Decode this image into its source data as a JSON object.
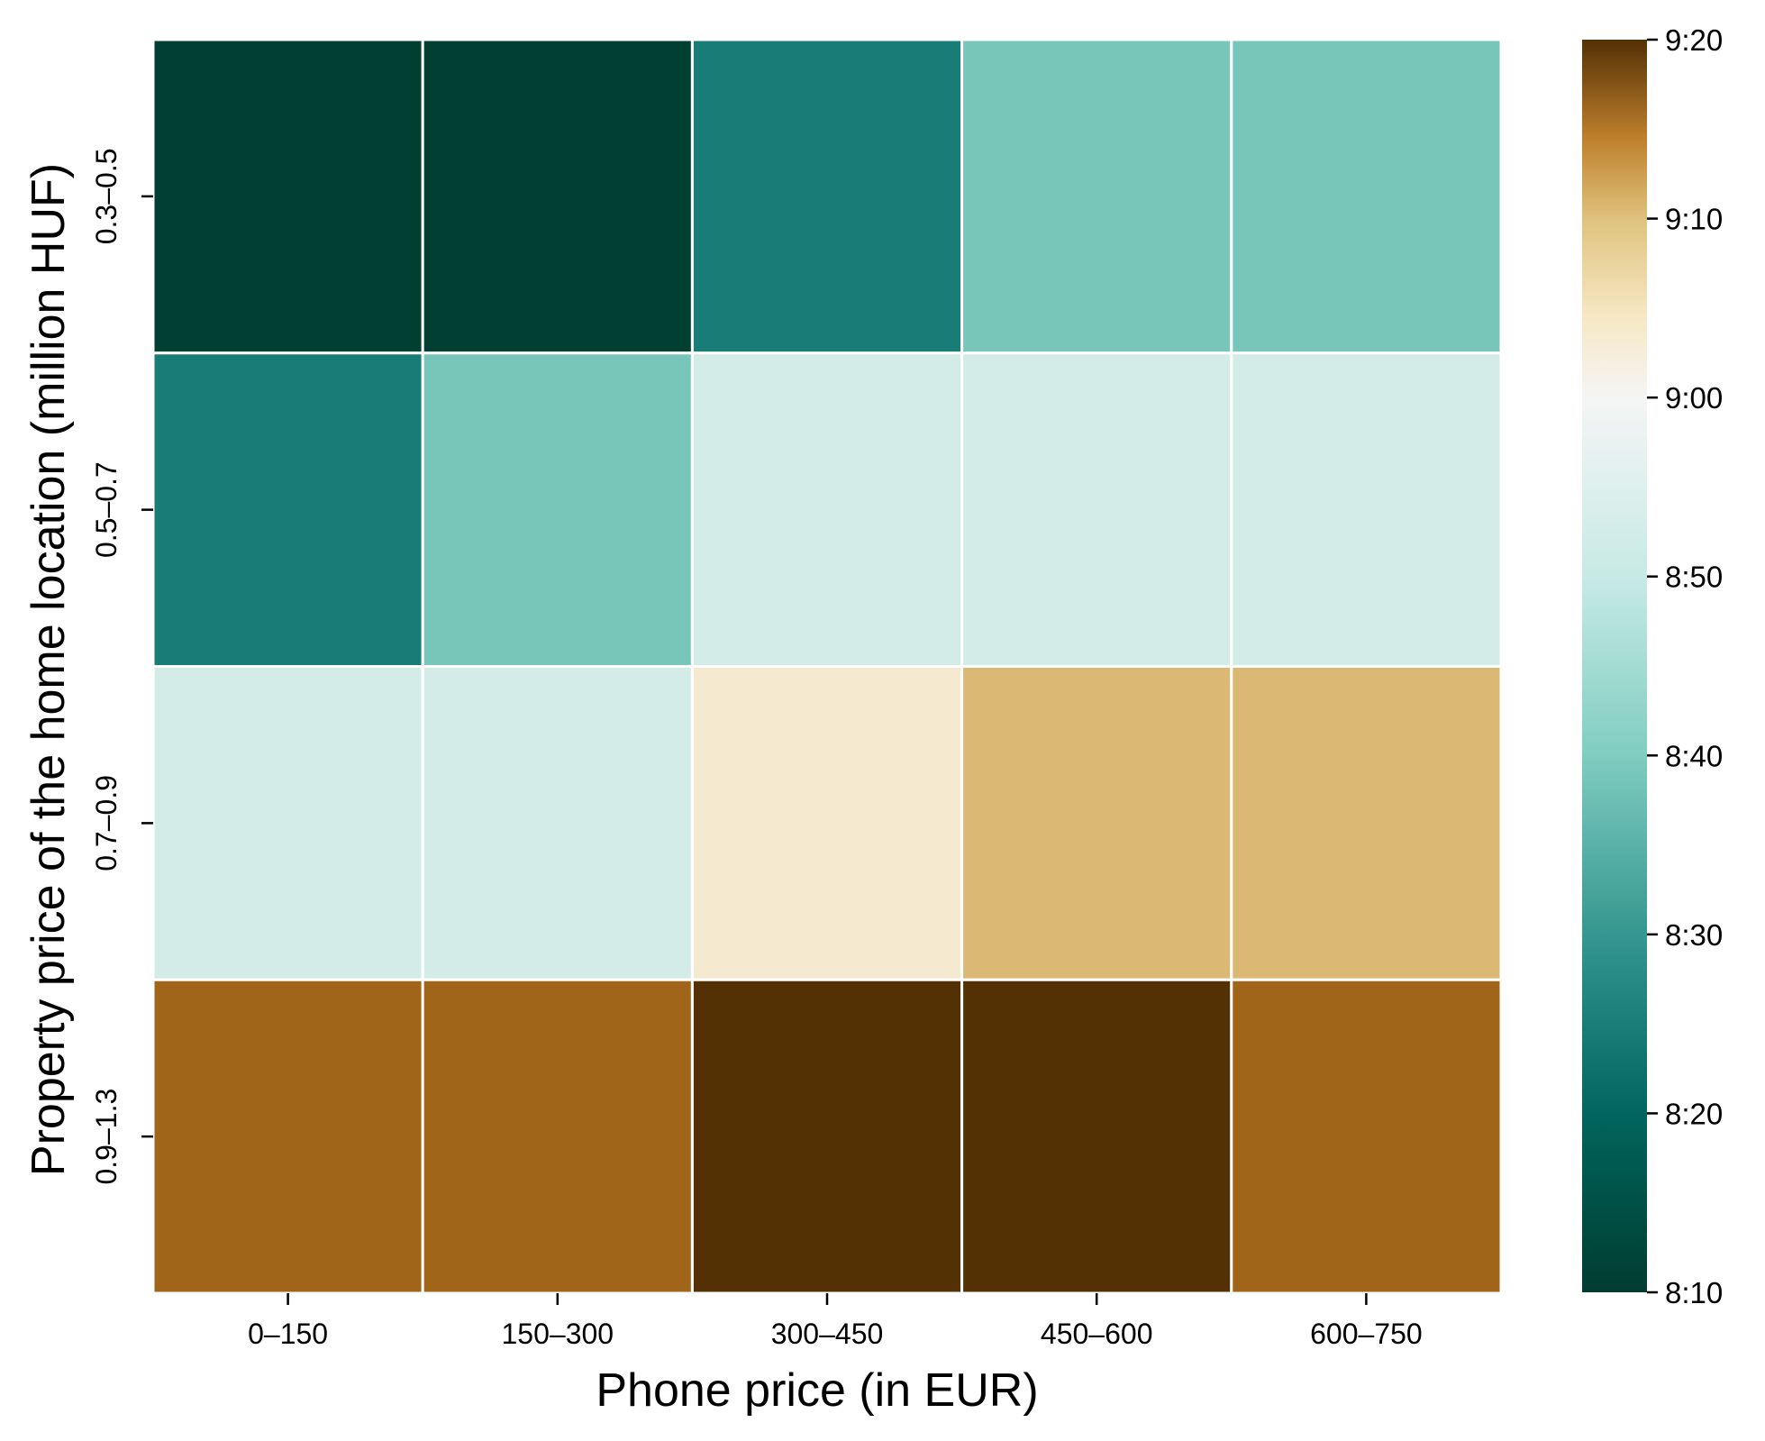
{
  "chart_data": {
    "type": "heatmap",
    "x_categories": [
      "0–150",
      "150–300",
      "300–450",
      "450–600",
      "600–750"
    ],
    "y_categories": [
      "0.3–0.5",
      "0.5–0.7",
      "0.7–0.9",
      "0.9–1.3"
    ],
    "values_minutes": [
      [
        490,
        490,
        502,
        515,
        515
      ],
      [
        502,
        515,
        520,
        520,
        520
      ],
      [
        520,
        520,
        530,
        538,
        538
      ],
      [
        545,
        545,
        555,
        555,
        545
      ]
    ],
    "xlabel": "Phone price (in EUR)",
    "ylabel": "Property price of the home location (million HUF)",
    "colorbar": {
      "min_minutes": 490,
      "max_minutes": 560,
      "tick_labels": [
        "8:10",
        "8:20",
        "8:30",
        "8:40",
        "8:50",
        "9:00",
        "9:10",
        "9:20"
      ]
    },
    "colormap": "BrBG_r",
    "cell_colors": [
      [
        "#023f33",
        "#023f33",
        "#187d76",
        "#78c6b9",
        "#78c6b9"
      ],
      [
        "#187d76",
        "#78c6b9",
        "#d4ece8",
        "#d4ece8",
        "#d4ece8"
      ],
      [
        "#d4ece8",
        "#d4ece8",
        "#f5ead0",
        "#dbb975",
        "#dbb975"
      ],
      [
        "#a06519",
        "#a06519",
        "#543104",
        "#543104",
        "#a06519"
      ]
    ],
    "grid": false,
    "legend": "colorbar-right"
  }
}
